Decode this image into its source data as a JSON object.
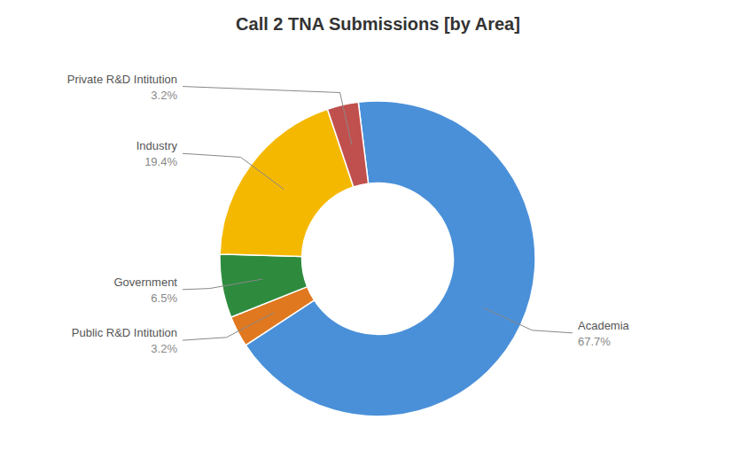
{
  "chart_data": {
    "type": "donut",
    "title": "Call 2 TNA Submissions [by Area]",
    "categories": [
      "Academia",
      "Public R&D Intitution",
      "Government",
      "Industry",
      "Private R&D Intitution"
    ],
    "values": [
      67.7,
      3.2,
      6.5,
      19.4,
      3.2
    ],
    "value_labels": [
      "67.7%",
      "3.2%",
      "6.5%",
      "19.4%",
      "3.2%"
    ],
    "colors": [
      "#4A90D9",
      "#E07820",
      "#2E8B3E",
      "#F5B800",
      "#C0504D"
    ],
    "data_labels": true
  }
}
